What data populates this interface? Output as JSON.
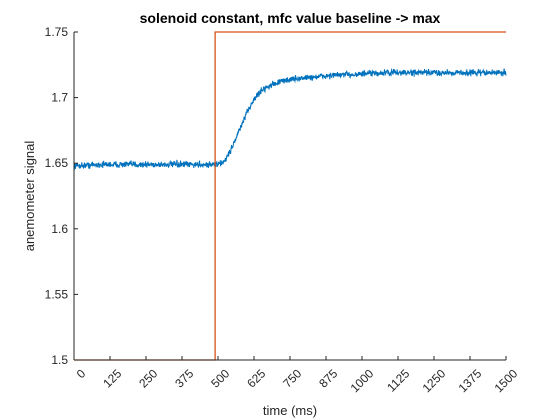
{
  "chart_data": {
    "type": "line",
    "title": "solenoid constant, mfc value baseline -> max",
    "xlabel": "time (ms)",
    "ylabel": "anemometer signal",
    "xlim": [
      0,
      1500
    ],
    "ylim": [
      1.5,
      1.75
    ],
    "xticks": [
      0,
      125,
      250,
      375,
      500,
      625,
      750,
      875,
      1000,
      1125,
      1250,
      1375,
      1500
    ],
    "xtick_labels": [
      "0",
      "125",
      "250",
      "375",
      "500",
      "625",
      "750",
      "875",
      "1000",
      "1125",
      "1250",
      "1375",
      "1500"
    ],
    "yticks": [
      1.5,
      1.55,
      1.6,
      1.65,
      1.7,
      1.75
    ],
    "ytick_labels": [
      "1.5",
      "1.55",
      "1.6",
      "1.65",
      "1.7",
      "1.75"
    ],
    "grid": false,
    "legend": "none",
    "series": [
      {
        "color": "#0072BD",
        "noise": 0.0015,
        "x": [
          0,
          100,
          200,
          300,
          400,
          450,
          480,
          500,
          520,
          540,
          560,
          580,
          600,
          620,
          640,
          660,
          680,
          700,
          750,
          800,
          850,
          900,
          1000,
          1100,
          1200,
          1300,
          1400,
          1500
        ],
        "y": [
          1.648,
          1.649,
          1.649,
          1.649,
          1.649,
          1.649,
          1.649,
          1.649,
          1.651,
          1.658,
          1.668,
          1.678,
          1.688,
          1.697,
          1.703,
          1.707,
          1.709,
          1.711,
          1.714,
          1.715,
          1.716,
          1.717,
          1.718,
          1.719,
          1.719,
          1.719,
          1.719,
          1.719
        ]
      },
      {
        "color": "#D95319",
        "x": [
          0,
          490,
          490,
          1500
        ],
        "y": [
          1.5,
          1.5,
          1.75,
          1.75
        ]
      }
    ]
  }
}
